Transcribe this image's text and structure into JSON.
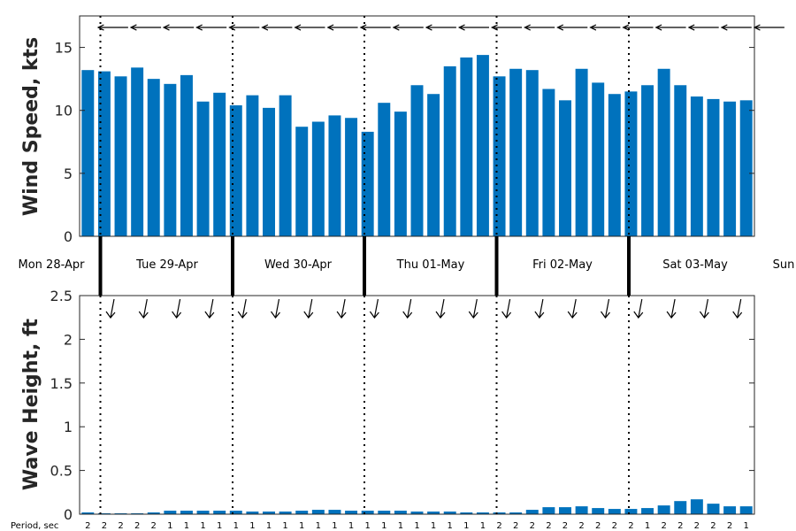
{
  "chart_data": [
    {
      "type": "bar",
      "ylabel": "Wind Speed, kts",
      "ylim": [
        0,
        17.5
      ],
      "yticks": [
        0,
        5,
        10,
        15
      ],
      "bar_color": "#0072BD",
      "values": [
        13.2,
        13.1,
        12.7,
        13.4,
        12.5,
        12.1,
        12.8,
        10.7,
        11.4,
        10.4,
        11.2,
        10.2,
        11.2,
        8.7,
        9.1,
        9.6,
        9.4,
        8.3,
        10.6,
        9.9,
        12.0,
        11.3,
        13.5,
        14.2,
        14.4,
        12.7,
        13.3,
        13.2,
        11.7,
        10.8,
        13.3,
        12.2,
        11.3,
        11.5,
        12.0,
        13.3,
        12.0,
        11.1,
        10.9,
        10.7,
        10.8
      ],
      "direction_arrows": [
        "wind-from-west-slight-down",
        "wind-from-west",
        "wind-from-west",
        "wind-from-west-slight-down",
        "wind-from-west-slight-down",
        "wind-from-west-slight-down",
        "wind-from-west-slight-down",
        "wind-from-west-slight-down",
        "wind-from-west-slight-down",
        "wind-from-west-slight-down",
        "wind-from-west-slight-down",
        "wind-from-west-slight-down",
        "wind-from-west-slight-down",
        "wind-from-west-slight-down",
        "wind-from-west-slight-down",
        "wind-from-west-slight-down",
        "wind-from-west-slight-down",
        "wind-from-west-slight-down",
        "wind-from-west-slight-down",
        "wind-from-west-slight-down",
        "wind-from-west-slight-down"
      ]
    },
    {
      "type": "bar",
      "ylabel": "Wave Height, ft",
      "ylim": [
        0,
        2.5
      ],
      "yticks": [
        "0",
        "0.5",
        "1",
        "1.5",
        "2",
        "2.5"
      ],
      "bar_color": "#0072BD",
      "values": [
        0.02,
        0.01,
        0.01,
        0.01,
        0.02,
        0.04,
        0.04,
        0.04,
        0.04,
        0.04,
        0.03,
        0.03,
        0.03,
        0.04,
        0.05,
        0.05,
        0.04,
        0.04,
        0.04,
        0.04,
        0.03,
        0.03,
        0.03,
        0.02,
        0.02,
        0.02,
        0.02,
        0.05,
        0.08,
        0.08,
        0.09,
        0.07,
        0.06,
        0.06,
        0.07,
        0.1,
        0.15,
        0.17,
        0.12,
        0.09,
        0.09
      ],
      "direction_arrows": [
        "wave-toward-south",
        "wave-toward-south",
        "wave-toward-south",
        "wave-toward-south",
        "wave-toward-south",
        "wave-toward-south",
        "wave-toward-south",
        "wave-toward-south",
        "wave-toward-south",
        "wave-toward-south",
        "wave-toward-south",
        "wave-toward-south",
        "wave-toward-south",
        "wave-toward-south",
        "wave-toward-south",
        "wave-toward-south",
        "wave-toward-south",
        "wave-toward-south",
        "wave-toward-south",
        "wave-toward-south"
      ]
    }
  ],
  "days": [
    "Mon 28-Apr",
    "Tue 29-Apr",
    "Wed 30-Apr",
    "Thu 01-May",
    "Fri 02-May",
    "Sat 03-May",
    "Sun"
  ],
  "period_label": "Period, sec",
  "periods": [
    "2",
    "2",
    "2",
    "2",
    "2",
    "1",
    "1",
    "1",
    "1",
    "1",
    "1",
    "1",
    "1",
    "1",
    "1",
    "1",
    "1",
    "1",
    "1",
    "1",
    "1",
    "1",
    "1",
    "1",
    "1",
    "2",
    "2",
    "2",
    "2",
    "2",
    "2",
    "2",
    "2",
    "2",
    "1",
    "2",
    "2",
    "2",
    "2",
    "2",
    "1"
  ]
}
